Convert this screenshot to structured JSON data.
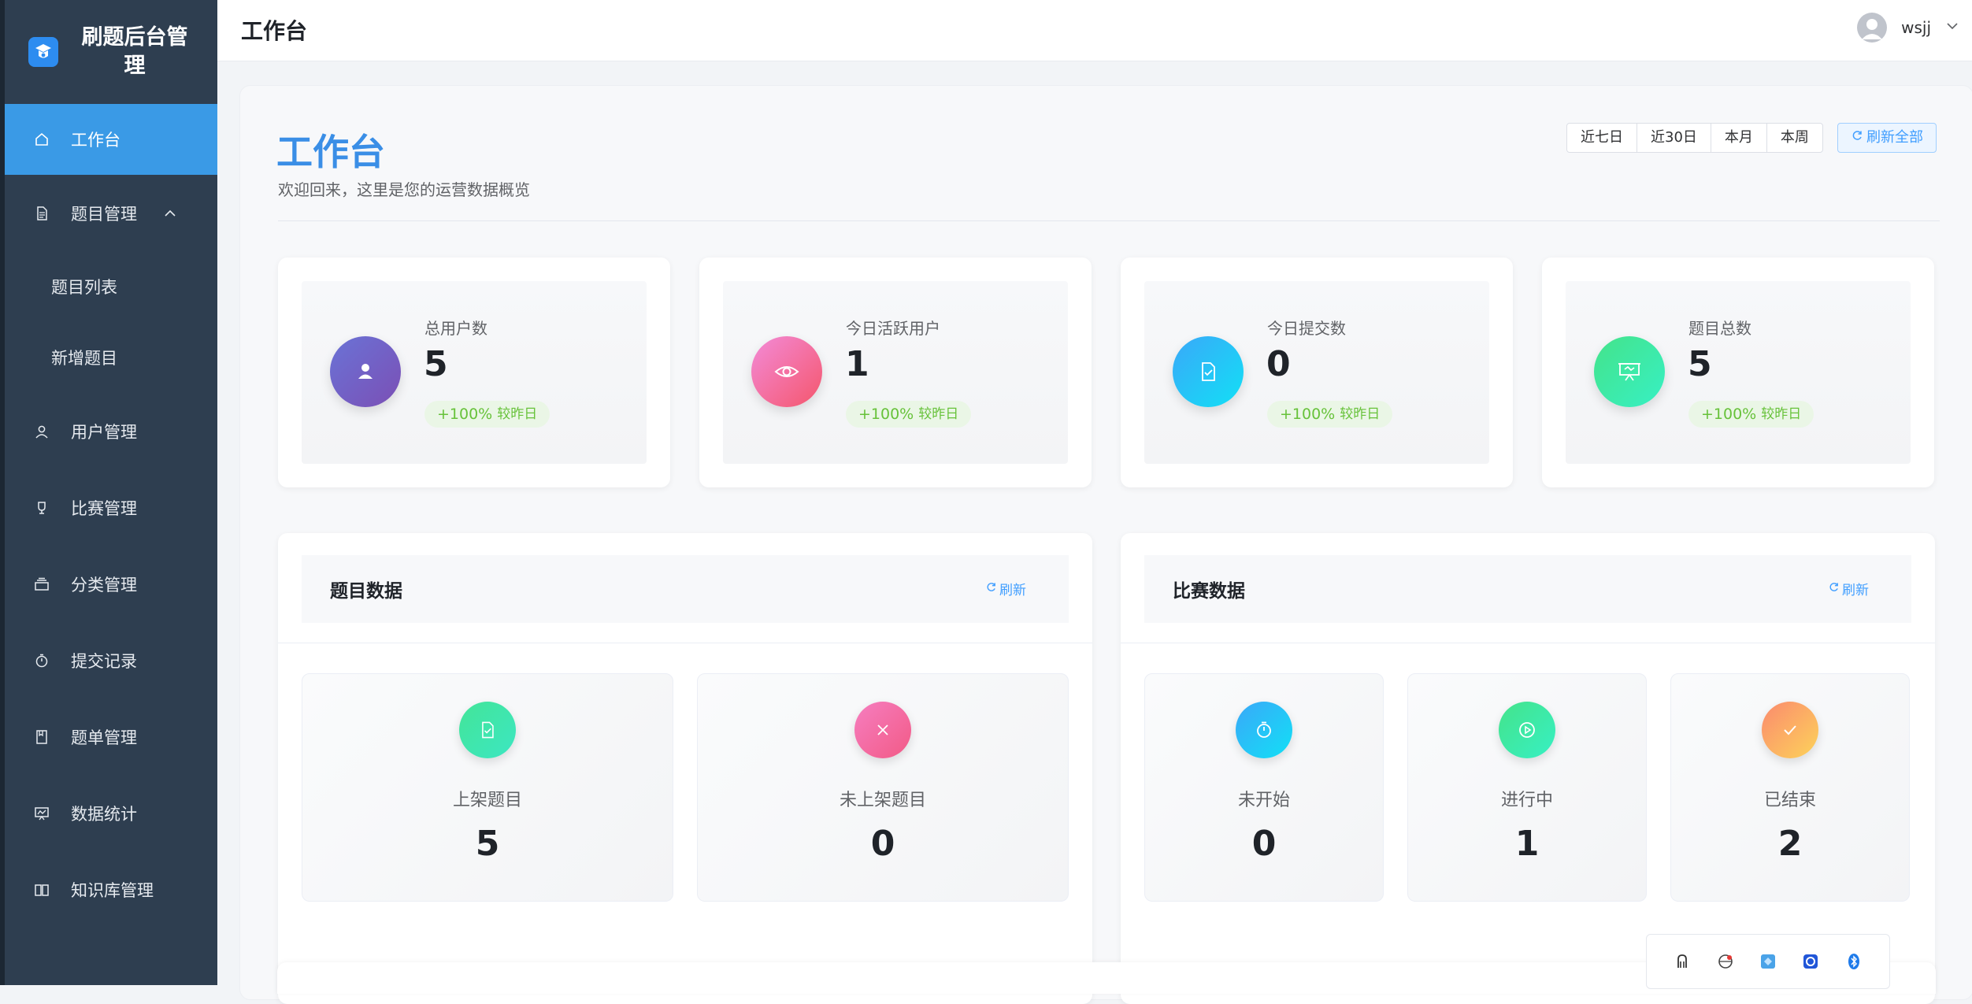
{
  "app": {
    "logo_text": "刷题后台管理"
  },
  "sidebar": {
    "items": [
      {
        "label": "工作台",
        "icon": "home-icon",
        "active": true
      },
      {
        "label": "题目管理",
        "icon": "document-icon",
        "expanded": true
      },
      {
        "label": "用户管理",
        "icon": "user-icon"
      },
      {
        "label": "比赛管理",
        "icon": "trophy-icon"
      },
      {
        "label": "分类管理",
        "icon": "box-icon"
      },
      {
        "label": "提交记录",
        "icon": "stopwatch-icon"
      },
      {
        "label": "题单管理",
        "icon": "notebook-icon"
      },
      {
        "label": "数据统计",
        "icon": "presentation-chart-icon"
      },
      {
        "label": "知识库管理",
        "icon": "open-book-icon"
      }
    ],
    "sub_items": [
      {
        "label": "题目列表"
      },
      {
        "label": "新增题目"
      }
    ]
  },
  "header": {
    "title": "工作台",
    "username": "wsjj"
  },
  "dashboard": {
    "title": "工作台",
    "subtitle": "欢迎回来，这里是您的运营数据概览",
    "ranges": [
      "近七日",
      "近30日",
      "本月",
      "本周"
    ],
    "refresh_all": "刷新全部"
  },
  "stats": [
    {
      "label": "总用户数",
      "value": "5",
      "trend": "+100%",
      "compare": "较昨日",
      "icon": "user-icon",
      "color_from": "#6a73d6",
      "color_to": "#7b4fb5"
    },
    {
      "label": "今日活跃用户",
      "value": "1",
      "trend": "+100%",
      "compare": "较昨日",
      "icon": "eye-icon",
      "color_from": "#f38bd8",
      "color_to": "#f4566c"
    },
    {
      "label": "今日提交数",
      "value": "0",
      "trend": "+100%",
      "compare": "较昨日",
      "icon": "document-check-icon",
      "color_from": "#3aa8f8",
      "color_to": "#12e0f6"
    },
    {
      "label": "题目总数",
      "value": "5",
      "trend": "+100%",
      "compare": "较昨日",
      "icon": "presentation-icon",
      "color_from": "#44e38a",
      "color_to": "#37f0c4"
    }
  ],
  "question_panel": {
    "title": "题目数据",
    "refresh": "刷新",
    "cards": [
      {
        "label": "上架题目",
        "value": "5",
        "icon": "document-check-icon",
        "color_from": "#43e598",
        "color_to": "#3ce6c2"
      },
      {
        "label": "未上架题目",
        "value": "0",
        "icon": "close-icon",
        "color_from": "#f67ec0",
        "color_to": "#f25a86"
      }
    ]
  },
  "contest_panel": {
    "title": "比赛数据",
    "refresh": "刷新",
    "cards": [
      {
        "label": "未开始",
        "value": "0",
        "icon": "stopwatch-icon",
        "color_from": "#3aa8f8",
        "color_to": "#12e0f6"
      },
      {
        "label": "进行中",
        "value": "1",
        "icon": "play-icon",
        "color_from": "#44e38a",
        "color_to": "#37f0c4"
      },
      {
        "label": "已结束",
        "value": "2",
        "icon": "check-icon",
        "color_from": "#fb8a6e",
        "color_to": "#fcd35a"
      }
    ]
  },
  "tray": {
    "icons": [
      "accessibility-icon",
      "network-icon",
      "app-icon",
      "security-icon",
      "bluetooth-icon"
    ]
  }
}
